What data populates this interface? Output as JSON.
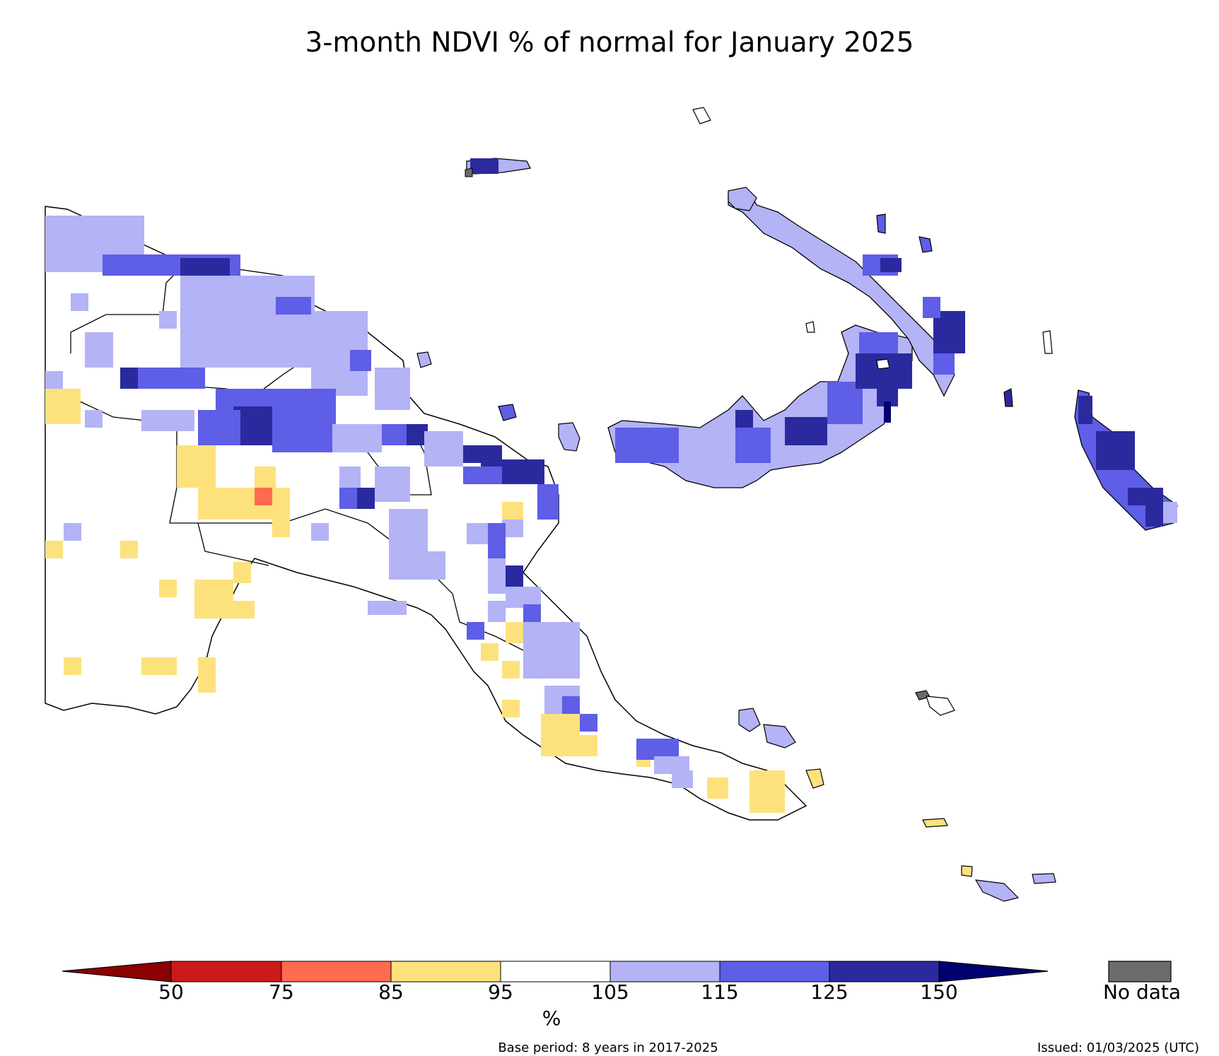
{
  "title": "3-month NDVI % of normal for January 2025",
  "colorbar": {
    "ticks": [
      "50",
      "75",
      "85",
      "95",
      "105",
      "115",
      "125",
      "150"
    ],
    "unit": "%",
    "colors": {
      "below_50": "#8b0000",
      "50_75": "#cc1a1a",
      "75_85": "#ff6b4f",
      "85_95": "#fde17d",
      "95_105": "#ffffff",
      "105_115": "#b3b3f5",
      "115_125": "#5e5ee6",
      "125_150": "#2a2a9e",
      "above_150": "#000070"
    },
    "nodata_label": "No data",
    "nodata_color": "#6b6b6b"
  },
  "footer": {
    "base_period": "Base period: 8 years in 2017-2025",
    "issued": "Issued: 01/03/2025 (UTC)"
  }
}
